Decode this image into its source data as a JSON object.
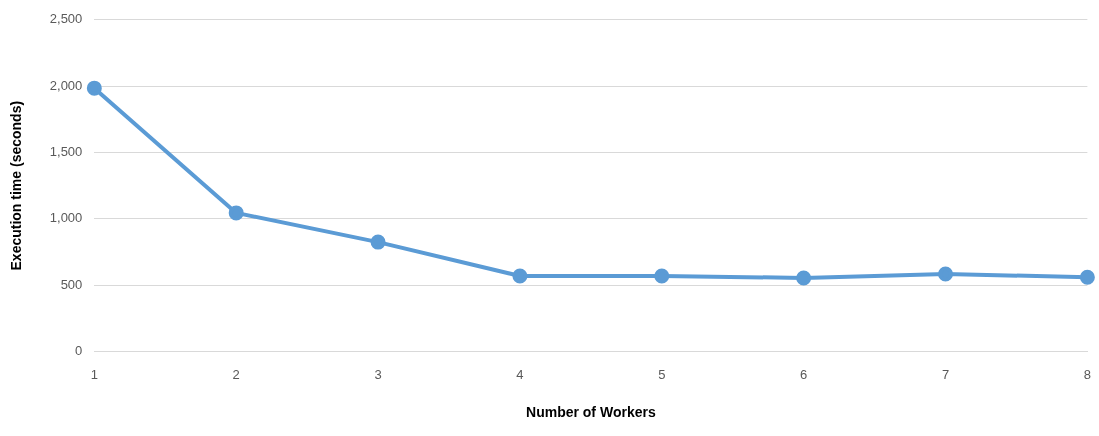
{
  "chart_data": {
    "type": "line",
    "xlabel": "Number of Workers",
    "ylabel": "Execution time (seconds)",
    "categories": [
      "1",
      "2",
      "3",
      "4",
      "5",
      "6",
      "7",
      "8"
    ],
    "series": [
      {
        "color": "#5b9bd5",
        "values": [
          1985,
          1045,
          825,
          570,
          570,
          555,
          585,
          560
        ]
      }
    ],
    "ylim": [
      0,
      2500
    ],
    "yticks": [
      0,
      500,
      {
        "value": 1000,
        "label": "1,000"
      },
      {
        "value": 1500,
        "label": "1,500"
      },
      {
        "value": 2000,
        "label": "2,000"
      },
      {
        "value": 2500,
        "label": "2,500"
      }
    ],
    "grid": "y",
    "legend": false,
    "marker": "circle",
    "line_style": "solid"
  }
}
